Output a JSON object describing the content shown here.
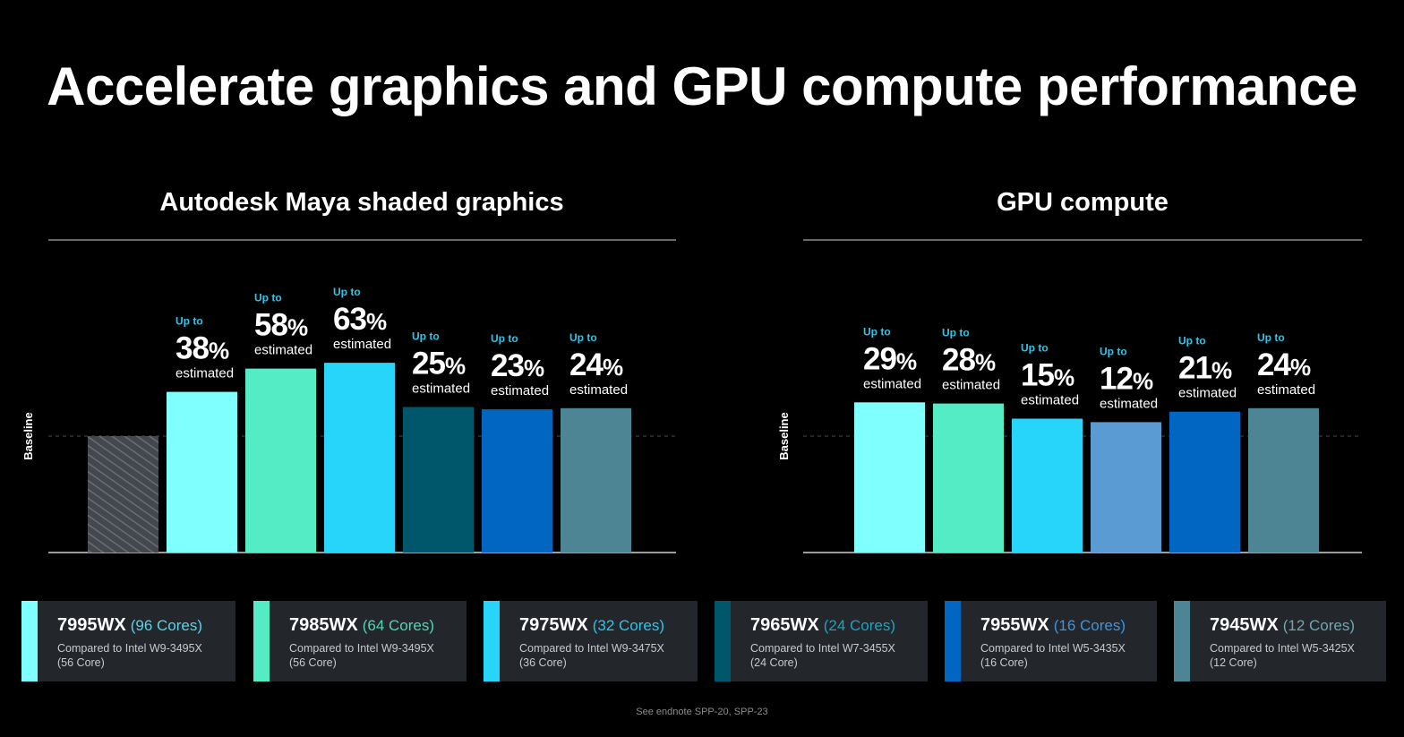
{
  "page": {
    "title": "Accelerate graphics and GPU compute performance",
    "footnote": "See endnote SPP-20, SPP-23"
  },
  "chart_data": [
    {
      "type": "bar",
      "title": "Autodesk Maya shaded graphics",
      "ylabel": "Baseline",
      "baseline_value": 100,
      "ylim": [
        0,
        165
      ],
      "categories": [
        "Baseline",
        "7995WX",
        "7985WX",
        "7975WX",
        "7965WX",
        "7955WX",
        "7945WX"
      ],
      "values": [
        100,
        138,
        158,
        163,
        125,
        123,
        124
      ],
      "colors": [
        "#5a5f66",
        "#7ffffe",
        "#54ecc4",
        "#27d4fa",
        "#00576c",
        "#0066c2",
        "#4e8595"
      ],
      "hatched": [
        true,
        false,
        false,
        false,
        false,
        false,
        false
      ],
      "labels": [
        null,
        {
          "prefix": "Up to",
          "value": "38",
          "unit": "%",
          "suffix": "estimated"
        },
        {
          "prefix": "Up to",
          "value": "58",
          "unit": "%",
          "suffix": "estimated"
        },
        {
          "prefix": "Up to",
          "value": "63",
          "unit": "%",
          "suffix": "estimated"
        },
        {
          "prefix": "Up to",
          "value": "25",
          "unit": "%",
          "suffix": "estimated"
        },
        {
          "prefix": "Up to",
          "value": "23",
          "unit": "%",
          "suffix": "estimated"
        },
        {
          "prefix": "Up to",
          "value": "24",
          "unit": "%",
          "suffix": "estimated"
        }
      ]
    },
    {
      "type": "bar",
      "title": "GPU compute",
      "ylabel": "Baseline",
      "baseline_value": 100,
      "ylim": [
        0,
        165
      ],
      "categories": [
        "7995WX",
        "7985WX",
        "7975WX",
        "7965WX",
        "7955WX",
        "7945WX"
      ],
      "values": [
        129,
        128,
        115,
        112,
        121,
        124
      ],
      "colors": [
        "#7ffffe",
        "#54ecc4",
        "#27d4fa",
        "#5b9bd4",
        "#0066c2",
        "#4e8595"
      ],
      "hatched": [
        false,
        false,
        false,
        false,
        false,
        false
      ],
      "labels": [
        {
          "prefix": "Up to",
          "value": "29",
          "unit": "%",
          "suffix": "estimated"
        },
        {
          "prefix": "Up to",
          "value": "28",
          "unit": "%",
          "suffix": "estimated"
        },
        {
          "prefix": "Up to",
          "value": "15",
          "unit": "%",
          "suffix": "estimated"
        },
        {
          "prefix": "Up to",
          "value": "12",
          "unit": "%",
          "suffix": "estimated"
        },
        {
          "prefix": "Up to",
          "value": "21",
          "unit": "%",
          "suffix": "estimated"
        },
        {
          "prefix": "Up to",
          "value": "24",
          "unit": "%",
          "suffix": "estimated"
        }
      ]
    }
  ],
  "legend": [
    {
      "model": "7995WX",
      "cores": "(96 Cores)",
      "compare": "Compared to Intel W9-3495X",
      "compare_cores": "(56 Core)",
      "color": "#7ffffe",
      "cores_color": "#5ad3e6"
    },
    {
      "model": "7985WX",
      "cores": "(64 Cores)",
      "compare": "Compared to Intel W9-3495X",
      "compare_cores": "(56 Core)",
      "color": "#54ecc4",
      "cores_color": "#4fd6b4"
    },
    {
      "model": "7975WX",
      "cores": "(32 Cores)",
      "compare": "Compared to Intel W9-3475X",
      "compare_cores": "(36 Core)",
      "color": "#27d4fa",
      "cores_color": "#2fc3ea"
    },
    {
      "model": "7965WX",
      "cores": "(24 Cores)",
      "compare": "Compared to Intel W7-3455X",
      "compare_cores": "(24 Core)",
      "color": "#00576c",
      "cores_color": "#1fa3c0"
    },
    {
      "model": "7955WX",
      "cores": "(16 Cores)",
      "compare": "Compared to Intel W5-3435X",
      "compare_cores": "(16 Core)",
      "color": "#0066c2",
      "cores_color": "#3f95dd"
    },
    {
      "model": "7945WX",
      "cores": "(12 Cores)",
      "compare": "Compared to Intel W5-3425X",
      "compare_cores": "(12 Core)",
      "color": "#4e8595",
      "cores_color": "#6fa6b6"
    }
  ]
}
